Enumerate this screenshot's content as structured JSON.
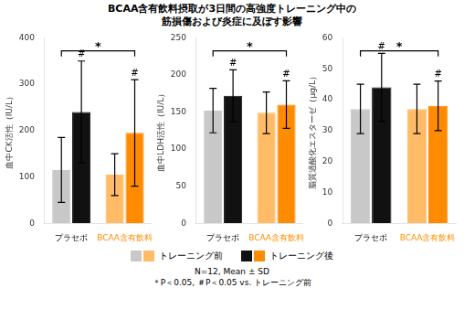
{
  "chart_data": [
    {
      "type": "bar",
      "title": "BCAA含有飲料摂取が3日間の高強度トレーニング中の",
      "subtitle": "筋損傷および炎症に及ぼす影響",
      "ylabel": "血中CK活性（IU/L）",
      "categories": [
        "プラセボ",
        "BCAA含有飲料"
      ],
      "category_colors": [
        "black",
        "#FF8C00"
      ],
      "series": [
        {
          "name": "トレーニング前",
          "colors": [
            "#c8c8c8",
            "#ffbb66"
          ],
          "values": [
            115,
            105
          ],
          "errors": [
            70,
            45
          ]
        },
        {
          "name": "トレーニング後",
          "colors": [
            "#111111",
            "#FF8C00"
          ],
          "values": [
            240,
            195
          ],
          "errors": [
            110,
            115
          ]
        }
      ],
      "ylim": [
        0,
        400
      ],
      "yticks": [
        0,
        100,
        200,
        300,
        400
      ],
      "grid": false,
      "legend": "bottom",
      "annotations": [
        {
          "text": "#",
          "category": "プラセボ",
          "series": "トレーニング後"
        },
        {
          "text": "#",
          "category": "BCAA含有飲料",
          "series": "トレーニング後"
        },
        {
          "text": "*",
          "bracket": [
            "プラセボ",
            "BCAA含有飲料"
          ]
        }
      ],
      "footnotes": [
        "N=12, Mean ± SD",
        "＊P＜0.05, ＃P＜0.05 vs. トレーニング前"
      ]
    },
    {
      "type": "bar",
      "ylabel": "血中LDH活性（IU/L）",
      "categories": [
        "プラセボ",
        "BCAA含有飲料"
      ],
      "category_colors": [
        "black",
        "#FF8C00"
      ],
      "series": [
        {
          "name": "トレーニング前",
          "colors": [
            "#c8c8c8",
            "#ffbb66"
          ],
          "values": [
            152,
            149
          ],
          "errors": [
            30,
            28
          ]
        },
        {
          "name": "トレーニング後",
          "colors": [
            "#111111",
            "#FF8C00"
          ],
          "values": [
            172,
            160
          ],
          "errors": [
            35,
            32
          ]
        }
      ],
      "ylim": [
        0,
        250
      ],
      "yticks": [
        0,
        50,
        100,
        150,
        200,
        250
      ],
      "grid": false,
      "annotations": [
        {
          "text": "#",
          "category": "プラセボ",
          "series": "トレーニング後"
        },
        {
          "text": "#",
          "category": "BCAA含有飲料",
          "series": "トレーニング後"
        },
        {
          "text": "*",
          "bracket": [
            "プラセボ",
            "BCAA含有飲料"
          ]
        }
      ]
    },
    {
      "type": "bar",
      "ylabel": "脂質過酸化エスターゼ（μg/L）",
      "categories": [
        "プラセボ",
        "BCAA含有飲料"
      ],
      "category_colors": [
        "black",
        "#FF8C00"
      ],
      "series": [
        {
          "name": "トレーニング前",
          "colors": [
            "#c8c8c8",
            "#ffbb66"
          ],
          "values": [
            37,
            37
          ],
          "errors": [
            8,
            8
          ]
        },
        {
          "name": "トレーニング後",
          "colors": [
            "#111111",
            "#FF8C00"
          ],
          "values": [
            44,
            38
          ],
          "errors": [
            11,
            8
          ]
        }
      ],
      "ylim": [
        0,
        60
      ],
      "yticks": [
        0,
        10,
        20,
        30,
        40,
        50,
        60
      ],
      "grid": false,
      "annotations": [
        {
          "text": "#",
          "category": "プラセボ",
          "series": "トレーニング後"
        },
        {
          "text": "#",
          "category": "BCAA含有飲料",
          "series": "トレーニング後"
        },
        {
          "text": "*",
          "bracket": [
            "プラセボ",
            "BCAA含有飲料"
          ]
        }
      ]
    }
  ]
}
